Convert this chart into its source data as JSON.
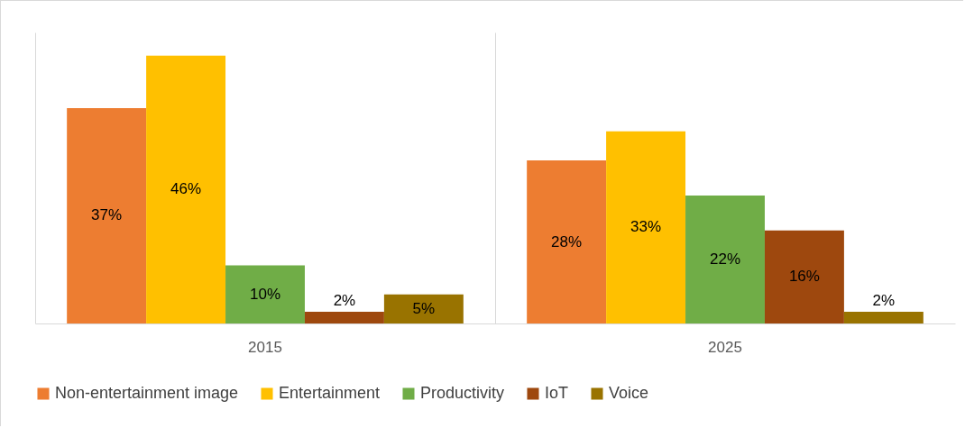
{
  "chart_data": {
    "type": "bar",
    "categories": [
      "2015",
      "2025"
    ],
    "series": [
      {
        "name": "Non-entertainment image",
        "color": "#ed7d31",
        "values": [
          37,
          28
        ],
        "value_labels": [
          "37%",
          "28%"
        ]
      },
      {
        "name": "Entertainment",
        "color": "#ffc000",
        "values": [
          46,
          33
        ],
        "value_labels": [
          "46%",
          "33%"
        ]
      },
      {
        "name": "Productivity",
        "color": "#70ad47",
        "values": [
          10,
          22
        ],
        "value_labels": [
          "10%",
          "22%"
        ]
      },
      {
        "name": "IoT",
        "color": "#9e480e",
        "values": [
          2,
          16
        ],
        "value_labels": [
          "2%",
          "16%"
        ]
      },
      {
        "name": "Voice",
        "color": "#997300",
        "values": [
          5,
          2
        ],
        "value_labels": [
          "5%",
          "2%"
        ]
      }
    ],
    "grid": "x",
    "legend": "bottom"
  }
}
